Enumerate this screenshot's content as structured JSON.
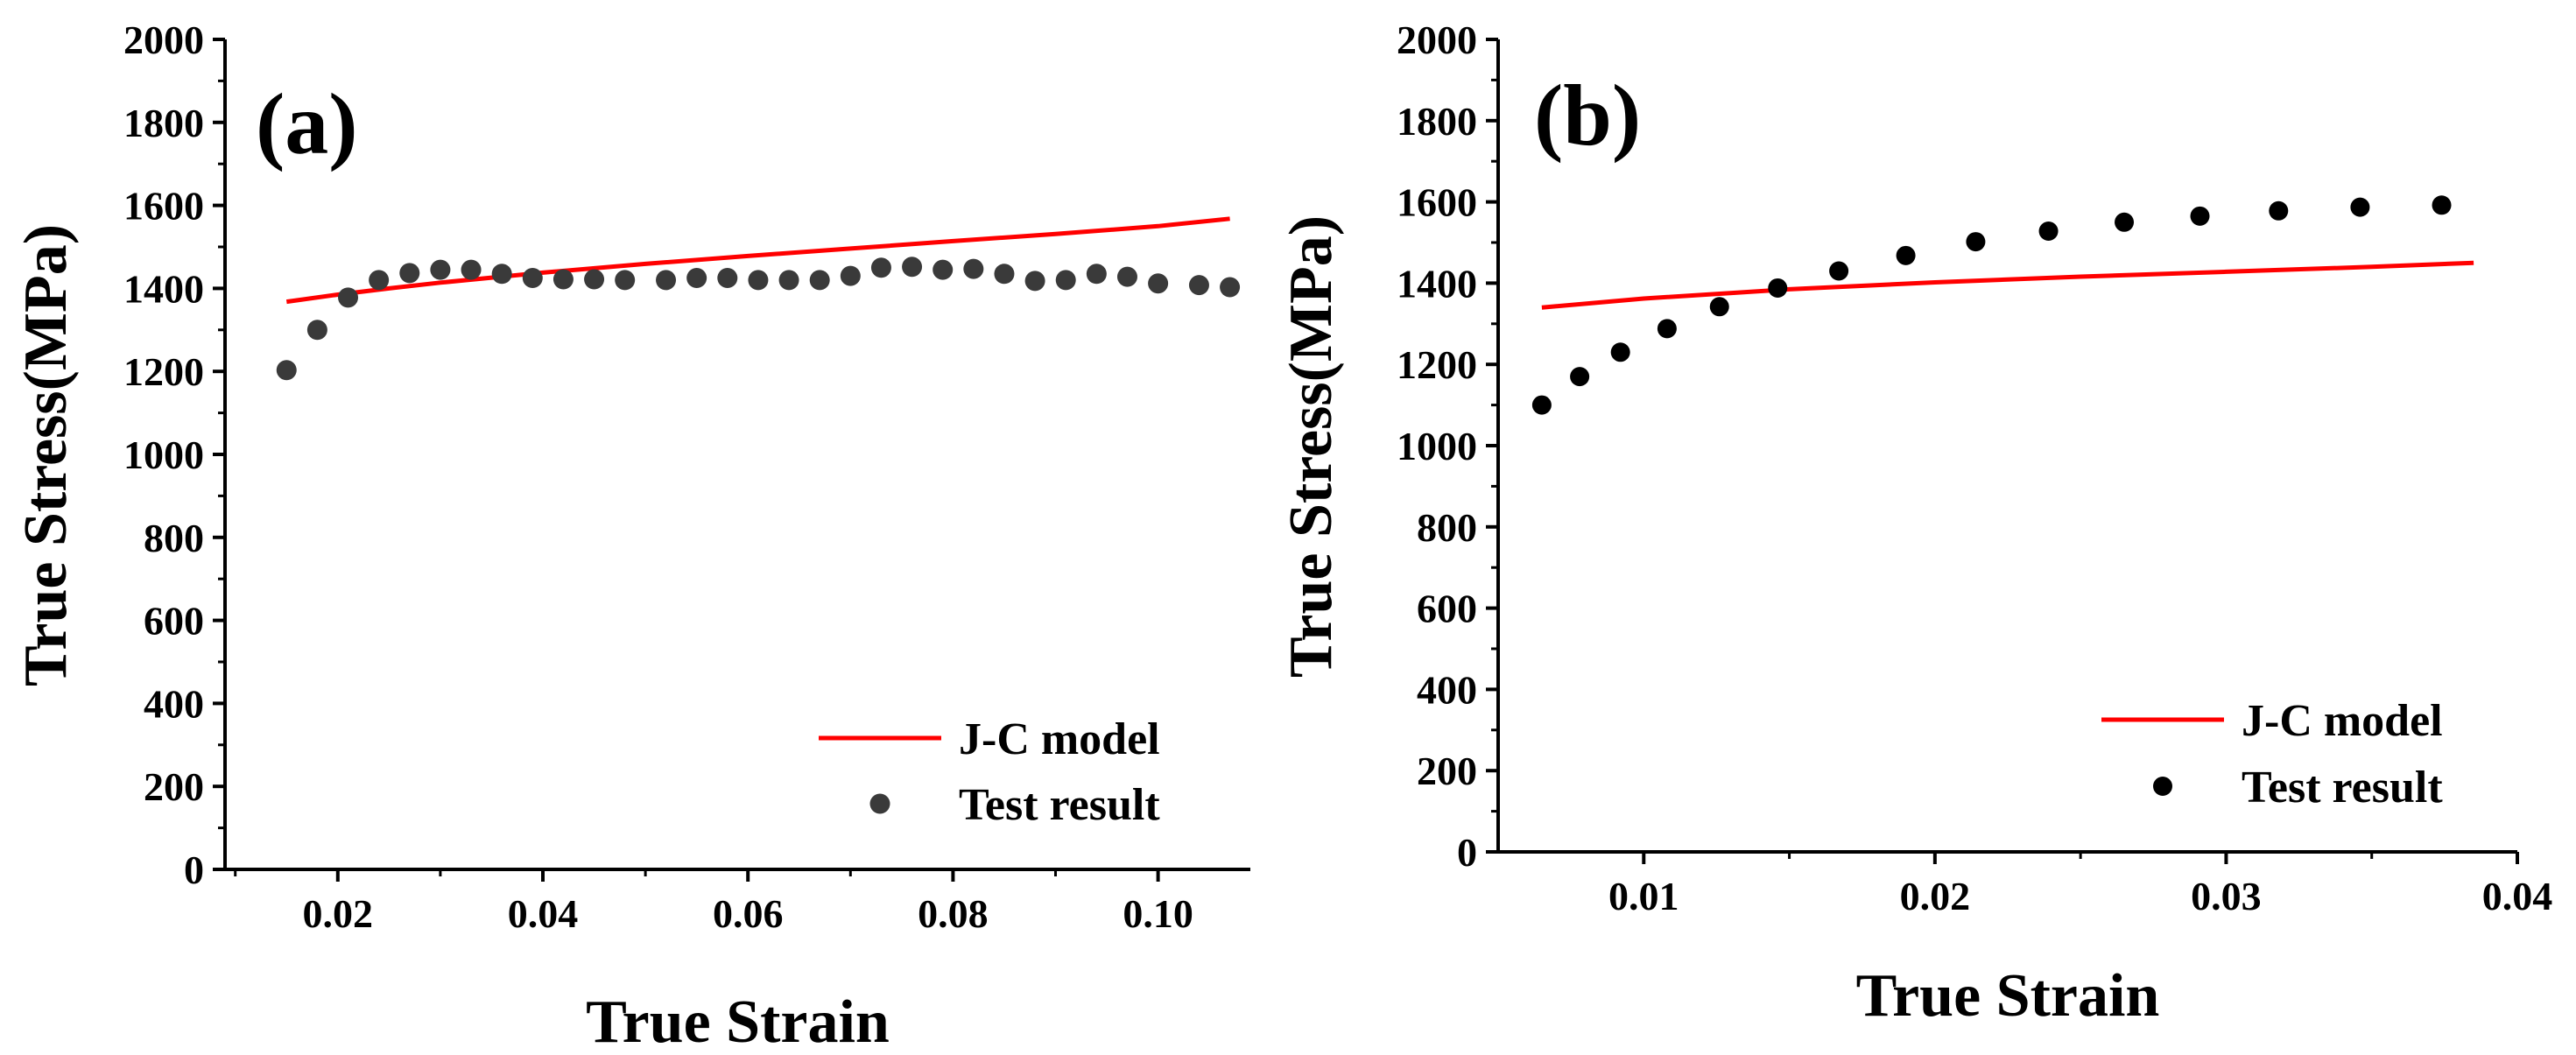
{
  "colors": {
    "model": "#ff0000",
    "testA": "#3a3a3a",
    "testB": "#000000",
    "axis": "#000000"
  },
  "chart_data": [
    {
      "type": "scatter",
      "panel_label": "(a)",
      "xlabel": "True Strain",
      "ylabel": "True Stress(MPa)",
      "xlim": [
        0.009,
        0.109
      ],
      "ylim": [
        0,
        2000
      ],
      "xticks": [
        0.02,
        0.04,
        0.06,
        0.08,
        0.1
      ],
      "xtick_labels": [
        "0.02",
        "0.04",
        "0.06",
        "0.08",
        "0.10"
      ],
      "yticks": [
        0,
        200,
        400,
        600,
        800,
        1000,
        1200,
        1400,
        1600,
        1800,
        2000
      ],
      "ytick_labels": [
        "0",
        "200",
        "400",
        "600",
        "800",
        "1000",
        "1200",
        "1400",
        "1600",
        "1800",
        "2000"
      ],
      "legend_position": "bottom-right",
      "series": [
        {
          "name": "J-C model",
          "kind": "line",
          "x": [
            0.015,
            0.02,
            0.025,
            0.03,
            0.035,
            0.04,
            0.05,
            0.06,
            0.07,
            0.08,
            0.09,
            0.1,
            0.107
          ],
          "y": [
            1368,
            1385,
            1400,
            1414,
            1426,
            1438,
            1459,
            1478,
            1496,
            1514,
            1531,
            1550,
            1568
          ]
        },
        {
          "name": "Test result",
          "kind": "scatter",
          "x": [
            0.015,
            0.018,
            0.021,
            0.024,
            0.027,
            0.03,
            0.033,
            0.036,
            0.039,
            0.042,
            0.045,
            0.048,
            0.052,
            0.055,
            0.058,
            0.061,
            0.064,
            0.067,
            0.07,
            0.073,
            0.076,
            0.079,
            0.082,
            0.085,
            0.088,
            0.091,
            0.094,
            0.097,
            0.1,
            0.104,
            0.107
          ],
          "y": [
            1203,
            1300,
            1378,
            1420,
            1437,
            1445,
            1445,
            1435,
            1425,
            1422,
            1422,
            1420,
            1420,
            1425,
            1425,
            1420,
            1420,
            1420,
            1430,
            1450,
            1452,
            1445,
            1447,
            1435,
            1418,
            1420,
            1435,
            1428,
            1412,
            1408,
            1403
          ]
        }
      ]
    },
    {
      "type": "scatter",
      "panel_label": "(b)",
      "xlabel": "True Strain",
      "ylabel": "True Stress(MPa)",
      "xlim": [
        0.005,
        0.04
      ],
      "ylim": [
        0,
        2000
      ],
      "xticks": [
        0.01,
        0.02,
        0.03,
        0.04
      ],
      "xtick_labels": [
        "0.01",
        "0.02",
        "0.03",
        "0.04"
      ],
      "yticks": [
        0,
        200,
        400,
        600,
        800,
        1000,
        1200,
        1400,
        1600,
        1800,
        2000
      ],
      "ytick_labels": [
        "0",
        "200",
        "400",
        "600",
        "800",
        "1000",
        "1200",
        "1400",
        "1600",
        "1800",
        "2000"
      ],
      "legend_position": "bottom-right",
      "series": [
        {
          "name": "J-C model",
          "kind": "line",
          "x": [
            0.0065,
            0.01,
            0.015,
            0.02,
            0.025,
            0.03,
            0.035,
            0.0385
          ],
          "y": [
            1340,
            1362,
            1385,
            1402,
            1416,
            1428,
            1440,
            1450
          ]
        },
        {
          "name": "Test result",
          "kind": "scatter",
          "x": [
            0.0065,
            0.0078,
            0.0092,
            0.0108,
            0.0126,
            0.0146,
            0.0167,
            0.019,
            0.0214,
            0.0239,
            0.0265,
            0.0291,
            0.0318,
            0.0346,
            0.0374
          ],
          "y": [
            1100,
            1170,
            1230,
            1288,
            1342,
            1388,
            1430,
            1468,
            1502,
            1528,
            1550,
            1565,
            1578,
            1587,
            1592
          ]
        }
      ]
    }
  ]
}
